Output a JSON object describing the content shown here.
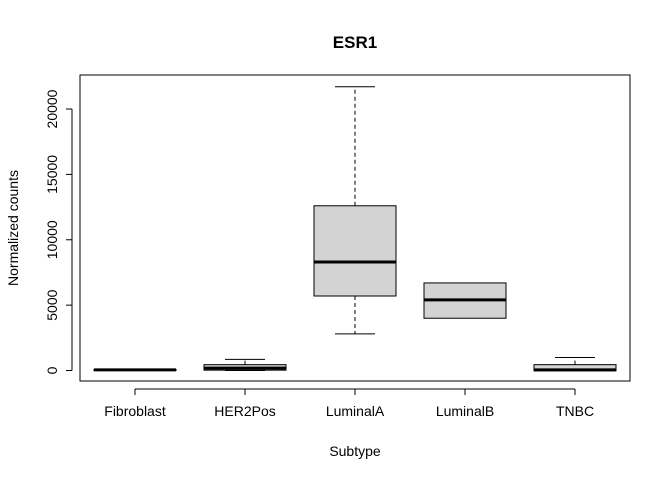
{
  "chart_data": {
    "type": "boxplot",
    "title": "ESR1",
    "xlabel": "Subtype",
    "ylabel": "Normalized counts",
    "ylim": [
      -800,
      22600
    ],
    "yticks": [
      0,
      5000,
      10000,
      15000,
      20000
    ],
    "ytick_labels": [
      "0",
      "5000",
      "10000",
      "15000",
      "20000"
    ],
    "categories": [
      "Fibroblast",
      "HER2Pos",
      "LuminalA",
      "LuminalB",
      "TNBC"
    ],
    "boxes": [
      {
        "category": "Fibroblast",
        "whisker_low": 0,
        "q1": 20,
        "median": 50,
        "q3": 80,
        "whisker_high": 100
      },
      {
        "category": "HER2Pos",
        "whisker_low": 0,
        "q1": 30,
        "median": 180,
        "q3": 450,
        "whisker_high": 850
      },
      {
        "category": "LuminalA",
        "whisker_low": 2800,
        "q1": 5700,
        "median": 8300,
        "q3": 12600,
        "whisker_high": 21700
      },
      {
        "category": "LuminalB",
        "whisker_low": 4000,
        "q1": 4000,
        "median": 5400,
        "q3": 6700,
        "whisker_high": 6700
      },
      {
        "category": "TNBC",
        "whisker_low": -20,
        "q1": -20,
        "median": 50,
        "q3": 450,
        "whisker_high": 1000
      }
    ],
    "box_fill": "#d3d3d3",
    "line_color": "#000000",
    "grid": false
  }
}
